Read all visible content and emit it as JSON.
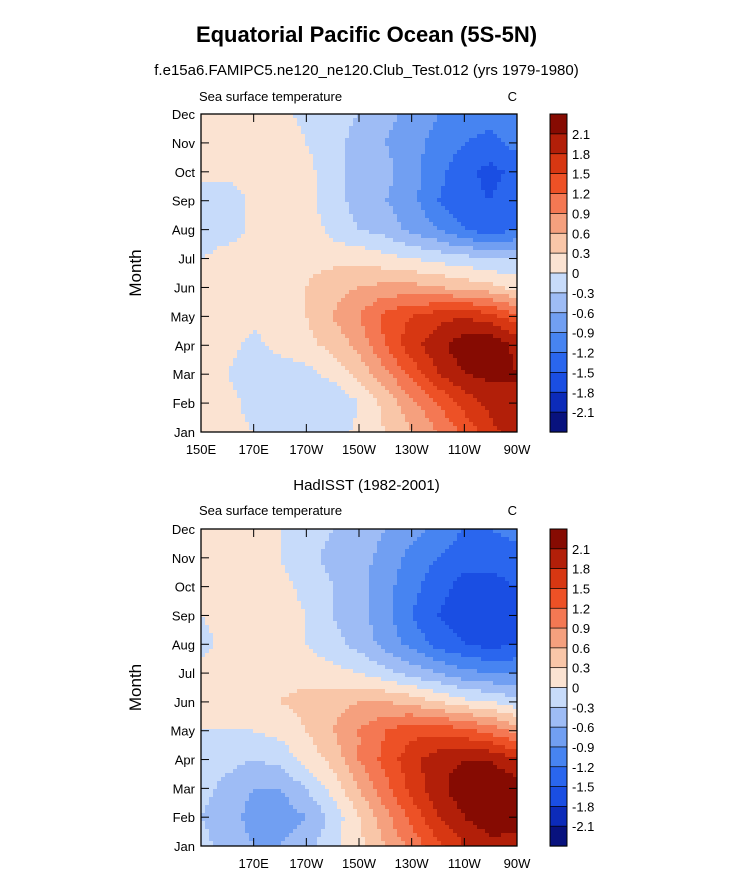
{
  "figure": {
    "title": "Equatorial Pacific Ocean (5S-5N)"
  },
  "colors": {
    "levels": [
      -2.1,
      -1.8,
      -1.5,
      -1.2,
      -0.9,
      -0.6,
      -0.3,
      0,
      0.3,
      0.6,
      0.9,
      1.2,
      1.5,
      1.8,
      2.1
    ],
    "palette": [
      "#08127e",
      "#0c2bb9",
      "#1a4ee3",
      "#2a66ee",
      "#4784f1",
      "#719ff2",
      "#9ebcf5",
      "#c7dbfa",
      "#fbe3d2",
      "#f9c6a8",
      "#f5a07e",
      "#f47853",
      "#ed5126",
      "#d73712",
      "#b21f09",
      "#860b02"
    ]
  },
  "chart_data": [
    {
      "type": "heatmap",
      "subtitle": "f.e15a6.FAMIPC5.ne120_ne120.Club_Test.012 (yrs 1979-1980)",
      "left_label": "Sea surface temperature",
      "right_label": "C",
      "ylabel": "Month",
      "xlabel": "",
      "xlim": [
        150,
        270
      ],
      "xticks": [
        150,
        170,
        190,
        210,
        230,
        250,
        270
      ],
      "xtick_labels": [
        "150E",
        "170E",
        "170W",
        "150W",
        "130W",
        "110W",
        "90W"
      ],
      "ylim": [
        1,
        12
      ],
      "yticks": [
        1,
        2,
        3,
        4,
        5,
        6,
        7,
        8,
        9,
        10,
        11,
        12
      ],
      "ytick_labels": [
        "Jan",
        "Feb",
        "Mar",
        "Apr",
        "May",
        "Jun",
        "Jul",
        "Aug",
        "Sep",
        "Oct",
        "Nov",
        "Dec"
      ],
      "legend": "colorbar right",
      "colorbar_labels": [
        "2.1",
        "1.8",
        "1.5",
        "1.2",
        "0.9",
        "0.6",
        "0.3",
        "0",
        "-0.3",
        "-0.6",
        "-0.9",
        "-1.2",
        "-1.5",
        "-1.8",
        "-2.1"
      ],
      "x": [
        150,
        160,
        170,
        180,
        190,
        200,
        210,
        220,
        230,
        240,
        250,
        260,
        270
      ],
      "y": [
        1,
        2,
        3,
        4,
        5,
        6,
        7,
        8,
        9,
        10,
        11,
        12
      ],
      "values": [
        [
          0.1,
          0.1,
          0.0,
          -0.1,
          -0.1,
          -0.2,
          0.1,
          0.3,
          0.6,
          0.9,
          1.3,
          1.7,
          2.0
        ],
        [
          0.1,
          0.1,
          -0.1,
          -0.2,
          -0.3,
          -0.3,
          0.0,
          0.4,
          0.8,
          1.2,
          1.6,
          1.9,
          2.1
        ],
        [
          0.1,
          0.0,
          -0.2,
          -0.2,
          -0.1,
          0.1,
          0.4,
          0.8,
          1.3,
          1.8,
          2.1,
          2.2,
          2.1
        ],
        [
          0.1,
          0.1,
          -0.1,
          0.1,
          0.2,
          0.4,
          0.7,
          1.2,
          1.7,
          2.0,
          2.3,
          2.4,
          2.0
        ],
        [
          0.1,
          0.2,
          0.1,
          0.2,
          0.3,
          0.6,
          0.9,
          1.3,
          1.5,
          1.7,
          1.8,
          1.6,
          1.3
        ],
        [
          0.1,
          0.2,
          0.2,
          0.2,
          0.3,
          0.5,
          0.6,
          0.7,
          0.7,
          0.6,
          0.5,
          0.4,
          0.2
        ],
        [
          0.0,
          0.2,
          0.2,
          0.2,
          0.2,
          0.2,
          0.2,
          0.1,
          0.0,
          -0.1,
          -0.2,
          -0.3,
          -0.3
        ],
        [
          -0.3,
          -0.2,
          0.1,
          0.3,
          0.2,
          -0.1,
          -0.3,
          -0.4,
          -0.7,
          -0.9,
          -1.2,
          -1.4,
          -1.2
        ],
        [
          -0.2,
          -0.2,
          0.1,
          0.2,
          0.1,
          -0.2,
          -0.4,
          -0.6,
          -0.8,
          -1.2,
          -1.4,
          -1.5,
          -1.3
        ],
        [
          0.1,
          0.1,
          0.1,
          0.2,
          0.1,
          -0.2,
          -0.4,
          -0.5,
          -0.8,
          -1.1,
          -1.4,
          -1.6,
          -1.4
        ],
        [
          0.1,
          0.1,
          0.1,
          0.2,
          0.0,
          -0.2,
          -0.4,
          -0.6,
          -0.8,
          -1.0,
          -1.2,
          -1.3,
          -1.1
        ],
        [
          0.1,
          0.1,
          0.1,
          0.1,
          -0.1,
          -0.2,
          -0.3,
          -0.5,
          -0.7,
          -0.9,
          -1.0,
          -1.1,
          -1.0
        ]
      ]
    },
    {
      "type": "heatmap",
      "subtitle": "HadISST (1982-2001)",
      "left_label": "Sea surface temperature",
      "right_label": "C",
      "ylabel": "Month",
      "xlabel": "",
      "xlim": [
        150,
        270
      ],
      "xticks": [
        170,
        190,
        210,
        230,
        250,
        270
      ],
      "xtick_labels": [
        "170E",
        "170W",
        "150W",
        "130W",
        "110W",
        "90W"
      ],
      "ylim": [
        1,
        12
      ],
      "yticks": [
        1,
        2,
        3,
        4,
        5,
        6,
        7,
        8,
        9,
        10,
        11,
        12
      ],
      "ytick_labels": [
        "Jan",
        "Feb",
        "Mar",
        "Apr",
        "May",
        "Jun",
        "Jul",
        "Aug",
        "Sep",
        "Oct",
        "Nov",
        "Dec"
      ],
      "legend": "colorbar right",
      "colorbar_labels": [
        "2.1",
        "1.8",
        "1.5",
        "1.2",
        "0.9",
        "0.6",
        "0.3",
        "0",
        "-0.3",
        "-0.6",
        "-0.9",
        "-1.2",
        "-1.5",
        "-1.8",
        "-2.1"
      ],
      "x": [
        150,
        160,
        170,
        180,
        190,
        200,
        210,
        220,
        230,
        240,
        250,
        260,
        270
      ],
      "y": [
        1,
        2,
        3,
        4,
        5,
        6,
        7,
        8,
        9,
        10,
        11,
        12
      ],
      "values": [
        [
          -0.2,
          -0.4,
          -0.6,
          -0.6,
          -0.4,
          -0.1,
          0.2,
          0.6,
          1.0,
          1.4,
          1.8,
          2.0,
          2.0
        ],
        [
          -0.3,
          -0.5,
          -0.7,
          -0.8,
          -0.6,
          -0.2,
          0.3,
          0.8,
          1.3,
          1.8,
          2.1,
          2.3,
          2.2
        ],
        [
          -0.2,
          -0.4,
          -0.6,
          -0.6,
          -0.3,
          0.1,
          0.6,
          1.1,
          1.6,
          2.0,
          2.3,
          2.4,
          2.3
        ],
        [
          -0.1,
          -0.2,
          -0.3,
          -0.2,
          0.1,
          0.4,
          0.9,
          1.3,
          1.7,
          2.0,
          2.1,
          2.1,
          1.8
        ],
        [
          0.0,
          0.0,
          0.0,
          0.1,
          0.3,
          0.6,
          0.9,
          1.2,
          1.4,
          1.4,
          1.3,
          1.1,
          0.8
        ],
        [
          0.1,
          0.2,
          0.2,
          0.3,
          0.4,
          0.5,
          0.6,
          0.6,
          0.5,
          0.3,
          0.1,
          0.0,
          -0.2
        ],
        [
          0.1,
          0.2,
          0.2,
          0.2,
          0.2,
          0.1,
          0.0,
          -0.2,
          -0.4,
          -0.6,
          -0.8,
          -0.9,
          -0.9
        ],
        [
          -0.1,
          0.1,
          0.2,
          0.2,
          0.0,
          -0.2,
          -0.4,
          -0.7,
          -1.0,
          -1.3,
          -1.5,
          -1.6,
          -1.5
        ],
        [
          0.0,
          0.1,
          0.3,
          0.2,
          0.0,
          -0.3,
          -0.5,
          -0.8,
          -1.2,
          -1.5,
          -1.7,
          -1.7,
          -1.6
        ],
        [
          0.0,
          0.1,
          0.2,
          0.1,
          -0.1,
          -0.3,
          -0.5,
          -0.8,
          -1.1,
          -1.4,
          -1.6,
          -1.6,
          -1.5
        ],
        [
          0.0,
          0.1,
          0.1,
          0.0,
          -0.2,
          -0.4,
          -0.5,
          -0.7,
          -1.0,
          -1.2,
          -1.4,
          -1.4,
          -1.3
        ],
        [
          0.0,
          0.1,
          0.1,
          0.0,
          -0.1,
          -0.3,
          -0.4,
          -0.6,
          -0.8,
          -1.0,
          -1.2,
          -1.2,
          -1.1
        ]
      ]
    }
  ]
}
